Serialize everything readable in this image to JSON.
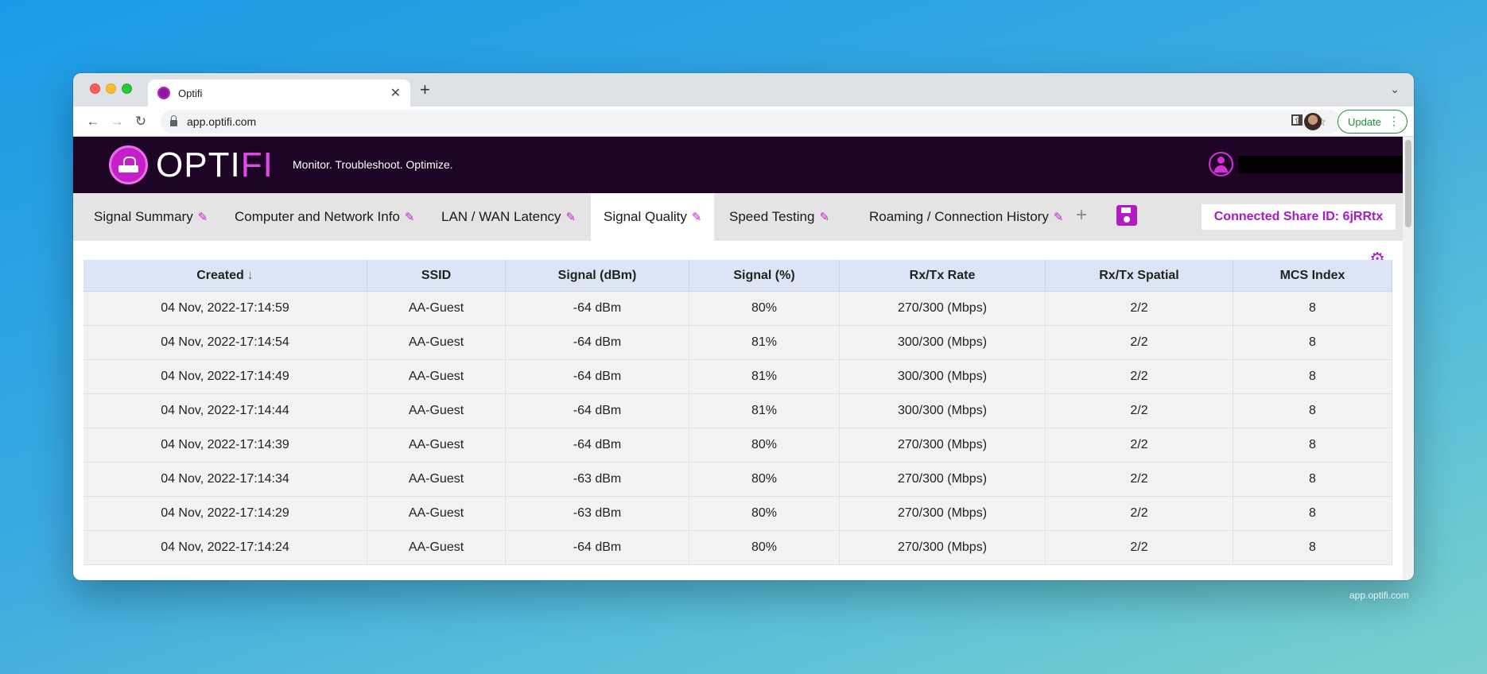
{
  "browser": {
    "tab_title": "Optifi",
    "url": "app.optifi.com",
    "update_label": "Update"
  },
  "app": {
    "logo_opti": "OPTI",
    "logo_fi": "FI",
    "tagline": "Monitor. Troubleshoot. Optimize.",
    "share_id": "Connected Share ID: 6jRRtx",
    "tabs": [
      {
        "label": "Signal Summary",
        "active": false
      },
      {
        "label": "Computer and Network Info",
        "active": false
      },
      {
        "label": "LAN / WAN Latency",
        "active": false
      },
      {
        "label": "Signal Quality",
        "active": true
      },
      {
        "label": "Speed Testing",
        "active": false
      },
      {
        "label": "Roaming / Connection History",
        "active": false
      }
    ],
    "accent_color": "#a819c7",
    "header_color": "#1e0526"
  },
  "table": {
    "columns": [
      "Created",
      "SSID",
      "Signal (dBm)",
      "Signal (%)",
      "Rx/Tx Rate",
      "Rx/Tx Spatial",
      "MCS Index"
    ],
    "rows": [
      [
        "04 Nov, 2022-17:14:59",
        "AA-Guest",
        "-64 dBm",
        "80%",
        "270/300 (Mbps)",
        "2/2",
        "8"
      ],
      [
        "04 Nov, 2022-17:14:54",
        "AA-Guest",
        "-64 dBm",
        "81%",
        "300/300 (Mbps)",
        "2/2",
        "8"
      ],
      [
        "04 Nov, 2022-17:14:49",
        "AA-Guest",
        "-64 dBm",
        "81%",
        "300/300 (Mbps)",
        "2/2",
        "8"
      ],
      [
        "04 Nov, 2022-17:14:44",
        "AA-Guest",
        "-64 dBm",
        "81%",
        "300/300 (Mbps)",
        "2/2",
        "8"
      ],
      [
        "04 Nov, 2022-17:14:39",
        "AA-Guest",
        "-64 dBm",
        "80%",
        "270/300 (Mbps)",
        "2/2",
        "8"
      ],
      [
        "04 Nov, 2022-17:14:34",
        "AA-Guest",
        "-63 dBm",
        "80%",
        "270/300 (Mbps)",
        "2/2",
        "8"
      ],
      [
        "04 Nov, 2022-17:14:29",
        "AA-Guest",
        "-63 dBm",
        "80%",
        "270/300 (Mbps)",
        "2/2",
        "8"
      ],
      [
        "04 Nov, 2022-17:14:24",
        "AA-Guest",
        "-64 dBm",
        "80%",
        "270/300 (Mbps)",
        "2/2",
        "8"
      ]
    ]
  },
  "footer": {
    "domain": "app.optifi.com"
  }
}
